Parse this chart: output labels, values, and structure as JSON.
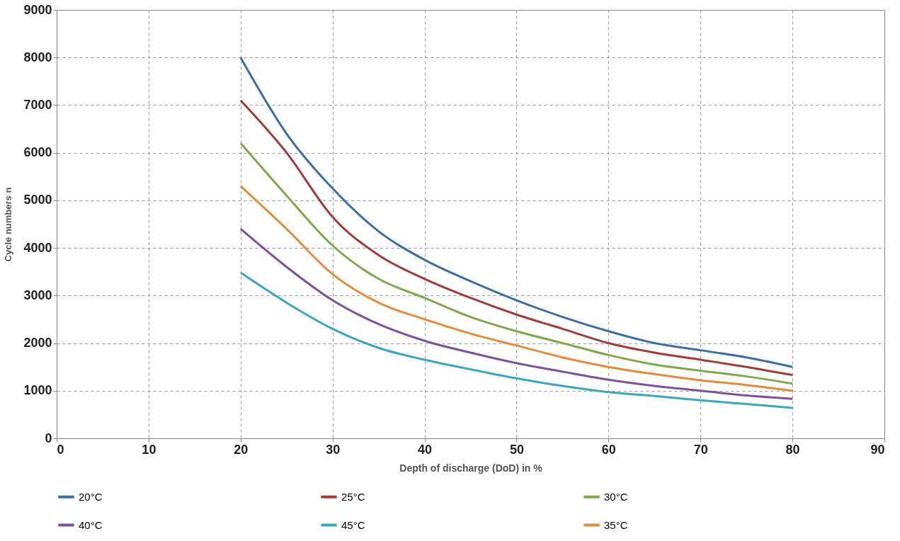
{
  "chart_data": {
    "type": "line",
    "xlabel": "Depth of discharge (DoD) in %",
    "ylabel": "Cycle numbers n",
    "x": [
      20,
      25,
      30,
      35,
      40,
      45,
      50,
      55,
      60,
      65,
      70,
      75,
      80
    ],
    "series": [
      {
        "name": "20°C",
        "color": "#3b6ea5",
        "values": [
          8000,
          6400,
          5250,
          4350,
          3750,
          3300,
          2900,
          2550,
          2250,
          2000,
          1850,
          1700,
          1500
        ]
      },
      {
        "name": "25°C",
        "color": "#a33b3b",
        "values": [
          7100,
          6000,
          4650,
          3850,
          3350,
          2950,
          2600,
          2300,
          2000,
          1800,
          1650,
          1500,
          1330
        ]
      },
      {
        "name": "30°C",
        "color": "#7fa94b",
        "values": [
          6200,
          5100,
          4050,
          3350,
          2950,
          2550,
          2250,
          2000,
          1750,
          1550,
          1420,
          1300,
          1150
        ]
      },
      {
        "name": "40°C",
        "color": "#7a529e",
        "values": [
          4400,
          3600,
          2900,
          2400,
          2050,
          1800,
          1580,
          1400,
          1230,
          1100,
          1000,
          900,
          830
        ]
      },
      {
        "name": "45°C",
        "color": "#3aa6c0",
        "values": [
          3480,
          2850,
          2300,
          1900,
          1650,
          1450,
          1260,
          1100,
          970,
          890,
          800,
          720,
          640
        ]
      },
      {
        "name": "35°C",
        "color": "#e68a3c",
        "values": [
          5300,
          4400,
          3450,
          2850,
          2500,
          2200,
          1950,
          1700,
          1500,
          1350,
          1220,
          1120,
          1000
        ]
      }
    ],
    "xlim": [
      0,
      90
    ],
    "xticks": [
      0,
      10,
      20,
      30,
      40,
      50,
      60,
      70,
      80,
      90
    ],
    "ylim": [
      0,
      9000
    ],
    "yticks": [
      0,
      1000,
      2000,
      3000,
      4000,
      5000,
      6000,
      7000,
      8000,
      9000
    ],
    "grid": true,
    "legend": "bottom",
    "line_style": "solid",
    "marker": "none"
  }
}
